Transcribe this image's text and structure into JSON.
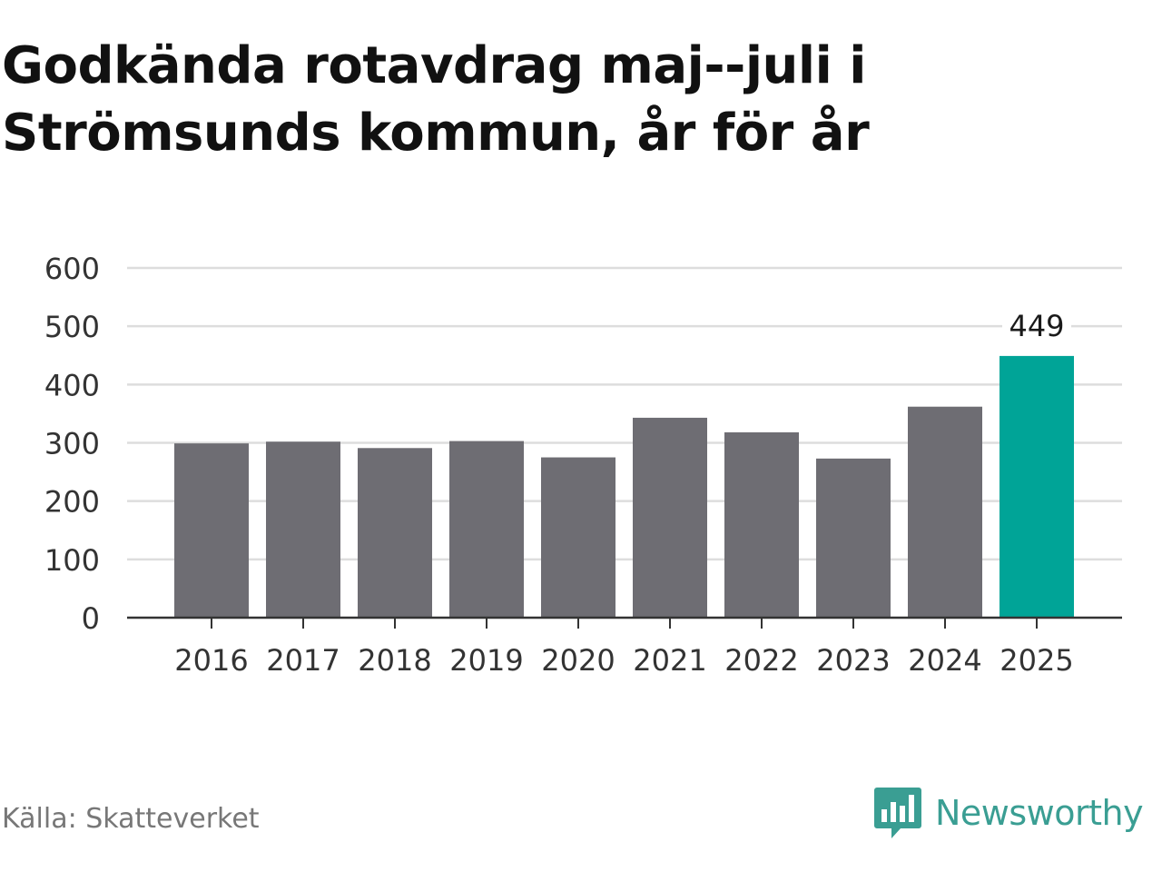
{
  "title": "Godkända rotavdrag maj--juli i Strömsunds kommun, år för år",
  "source": "Källa: Skatteverket",
  "brand": {
    "name": "Newsworthy",
    "icon": "newsworthy-logo-icon",
    "color": "#3a9e93"
  },
  "colors": {
    "bar": "#6e6d73",
    "highlight": "#00a497",
    "grid": "#dddddd",
    "axis": "#333333"
  },
  "chart_data": {
    "type": "bar",
    "title": "Godkända rotavdrag maj--juli i Strömsunds kommun, år för år",
    "xlabel": "",
    "ylabel": "",
    "categories": [
      "2016",
      "2017",
      "2018",
      "2019",
      "2020",
      "2021",
      "2022",
      "2023",
      "2024",
      "2025"
    ],
    "values": [
      299,
      302,
      291,
      303,
      275,
      343,
      318,
      273,
      362,
      449
    ],
    "highlight_index": 9,
    "data_labels": [
      {
        "index": 9,
        "text": "449"
      }
    ],
    "ylim": [
      0,
      600
    ],
    "yticks": [
      "0",
      "100",
      "200",
      "300",
      "400",
      "500",
      "600"
    ],
    "grid": true,
    "legend": "none"
  }
}
